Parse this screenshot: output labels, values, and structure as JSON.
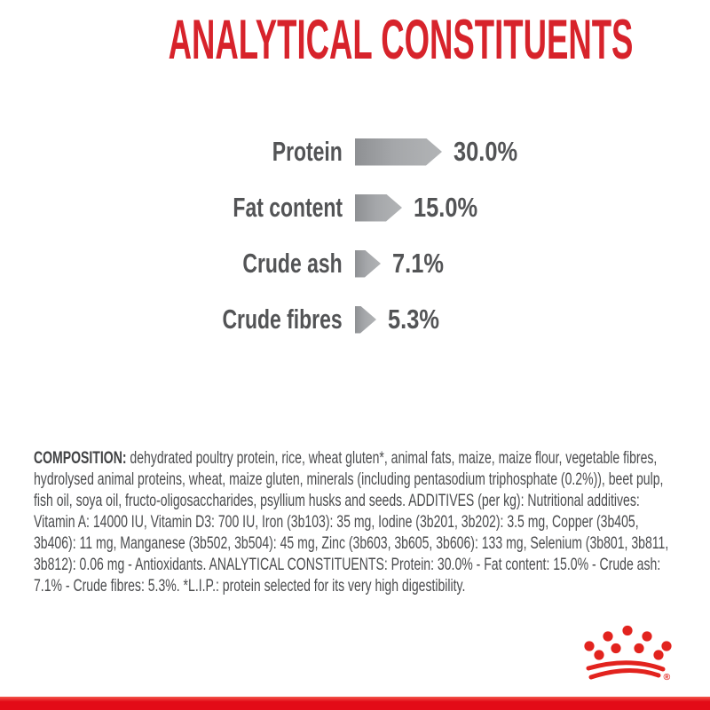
{
  "title": "ANALYTICAL CONSTITUENTS",
  "colors": {
    "title_red": "#d7232b",
    "band_red": "#e30b17",
    "logo_red": "#e2231e",
    "text_gray": "#4b4c4e",
    "chart_text_gray": "#535456",
    "bar_gray_dark": "#8e9093",
    "bar_gray_light": "#b2b4b6"
  },
  "chart_data": {
    "type": "bar",
    "orientation": "horizontal",
    "bar_shape": "right-arrow",
    "categories": [
      "Protein",
      "Fat content",
      "Crude ash",
      "Crude fibres"
    ],
    "values": [
      30.0,
      15.0,
      7.1,
      5.3
    ],
    "value_labels": [
      "30.0%",
      "15.0%",
      "7.1%",
      "5.3%"
    ],
    "unit": "%",
    "title": "ANALYTICAL CONSTITUENTS",
    "xlabel": "",
    "ylabel": "",
    "grid": false,
    "legend": false
  },
  "composition": {
    "label": "COMPOSITION:",
    "text": "dehydrated poultry protein, rice, wheat gluten*, animal fats, maize, maize flour, vegetable fibres, hydrolysed animal proteins, wheat, maize gluten, minerals (including pentasodium triphosphate (0.2%)), beet pulp, fish oil, soya oil, fructo-oligosaccharides, psyllium husks and seeds. ADDITIVES (per kg): Nutritional additives: Vitamin A: 14000 IU, Vitamin D3: 700 IU, Iron (3b103): 35 mg, Iodine (3b201, 3b202): 3.5 mg, Copper (3b405, 3b406): 11 mg, Manganese (3b502, 3b504): 45 mg, Zinc (3b603, 3b605, 3b606): 133 mg, Selenium (3b801, 3b811, 3b812): 0.06 mg - Antioxidants. ANALYTICAL CONSTITUENTS: Protein: 30.0% - Fat content: 15.0% - Crude ash: 7.1% - Crude fibres: 5.3%. *L.I.P.: protein selected for its very high digestibility."
  },
  "footer": {
    "logo_name": "royal-canin-crown-logo",
    "registered_mark": "®"
  }
}
